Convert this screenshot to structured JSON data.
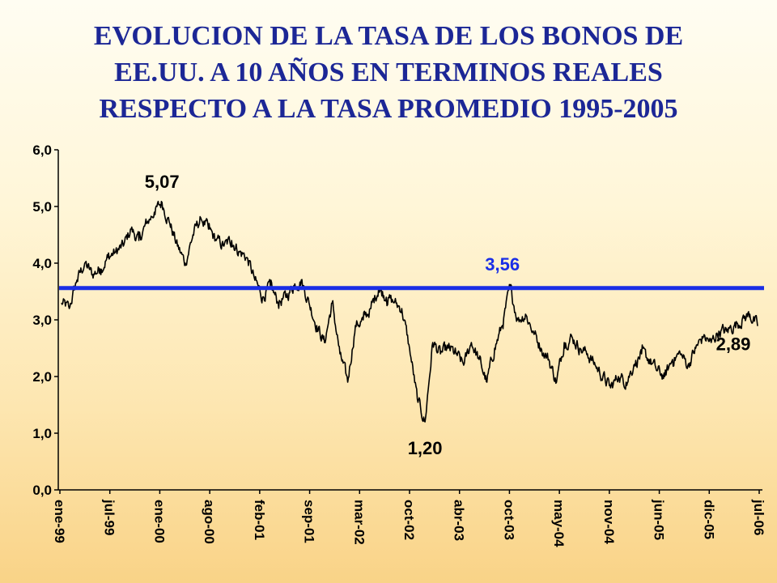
{
  "title": {
    "lines": [
      "EVOLUCION DE LA TASA DE LOS BONOS DE",
      "EE.UU. A 10 AÑOS EN TERMINOS REALES",
      "RESPECTO A LA TASA PROMEDIO 1995-2005"
    ]
  },
  "colors": {
    "title": "#1c2796",
    "series": "#000000",
    "average": "#1a2ee6",
    "axis": "#000000"
  },
  "chart_data": {
    "type": "line",
    "title": "EVOLUCION DE LA TASA DE LOS BONOS DE EE.UU. A 10 AÑOS EN TERMINOS REALES RESPECTO A LA TASA PROMEDIO 1995-2005",
    "xlabel": "",
    "ylabel": "",
    "ylim": [
      0,
      6
    ],
    "grid": false,
    "legend": "none",
    "y_ticks": [
      "0,0",
      "1,0",
      "2,0",
      "3,0",
      "4,0",
      "5,0",
      "6,0"
    ],
    "x_ticks": [
      "ene-99",
      "jul-99",
      "ene-00",
      "ago-00",
      "feb-01",
      "sep-01",
      "mar-02",
      "oct-02",
      "abr-03",
      "oct-03",
      "may-04",
      "nov-04",
      "jun-05",
      "dic-05",
      "jul-06"
    ],
    "series": [
      {
        "x": [
          "ene-99",
          "feb-99",
          "mar-99",
          "abr-99",
          "may-99",
          "jun-99",
          "jul-99",
          "ago-99",
          "sep-99",
          "oct-99",
          "nov-99",
          "dic-99",
          "ene-00",
          "feb-00",
          "mar-00",
          "abr-00",
          "may-00",
          "jun-00",
          "jul-00",
          "ago-00",
          "sep-00",
          "oct-00",
          "nov-00",
          "dic-00",
          "ene-01",
          "feb-01",
          "mar-01",
          "abr-01",
          "may-01",
          "jun-01",
          "jul-01",
          "ago-01",
          "sep-01",
          "oct-01",
          "nov-01",
          "dic-01",
          "ene-02",
          "feb-02",
          "mar-02",
          "abr-02",
          "may-02",
          "jun-02",
          "jul-02",
          "ago-02",
          "sep-02",
          "oct-02",
          "nov-02",
          "dic-02",
          "ene-03",
          "feb-03",
          "mar-03",
          "abr-03",
          "may-03",
          "jun-03",
          "jul-03",
          "ago-03",
          "sep-03",
          "oct-03",
          "nov-03",
          "dic-03",
          "ene-04",
          "feb-04",
          "mar-04",
          "abr-04",
          "may-04",
          "jun-04",
          "jul-04",
          "ago-04",
          "sep-04",
          "oct-04",
          "nov-04",
          "dic-04",
          "ene-05",
          "feb-05",
          "mar-05",
          "abr-05",
          "may-05",
          "jun-05",
          "jul-05",
          "ago-05",
          "sep-05",
          "oct-05",
          "nov-05",
          "dic-05",
          "ene-06",
          "feb-06",
          "mar-06",
          "abr-06",
          "may-06",
          "jun-06",
          "jul-06"
        ],
        "values": [
          3.3,
          3.2,
          3.7,
          4.0,
          3.8,
          3.9,
          4.1,
          4.2,
          4.3,
          4.6,
          4.4,
          4.7,
          4.9,
          5.07,
          4.7,
          4.3,
          4.0,
          4.5,
          4.8,
          4.6,
          4.4,
          4.3,
          4.4,
          4.2,
          4.1,
          3.7,
          3.4,
          3.6,
          3.3,
          3.4,
          3.6,
          3.7,
          3.3,
          2.9,
          2.6,
          3.3,
          2.4,
          1.9,
          2.9,
          3.0,
          3.2,
          3.56,
          3.4,
          3.3,
          3.2,
          2.5,
          1.6,
          1.2,
          2.6,
          2.4,
          2.5,
          2.4,
          2.2,
          2.6,
          2.3,
          1.9,
          2.5,
          2.9,
          3.56,
          3.0,
          3.1,
          2.8,
          2.5,
          2.3,
          1.9,
          2.6,
          2.7,
          2.5,
          2.4,
          2.2,
          2.0,
          1.8,
          2.0,
          1.9,
          2.2,
          2.4,
          2.3,
          2.1,
          2.0,
          2.3,
          2.4,
          2.2,
          2.5,
          2.7,
          2.6,
          2.8,
          2.8,
          2.9,
          3.0,
          3.1,
          2.89
        ]
      }
    ],
    "reference_line": {
      "value": 3.56
    },
    "annotations": [
      {
        "text": "5,07",
        "x": "feb-00",
        "y": 5.07
      },
      {
        "text": "3,56",
        "x": "oct-03",
        "y": 3.56
      },
      {
        "text": "1,20",
        "x": "dic-02",
        "y": 1.2
      },
      {
        "text": "2,89",
        "x": "jul-06",
        "y": 2.89
      }
    ]
  }
}
